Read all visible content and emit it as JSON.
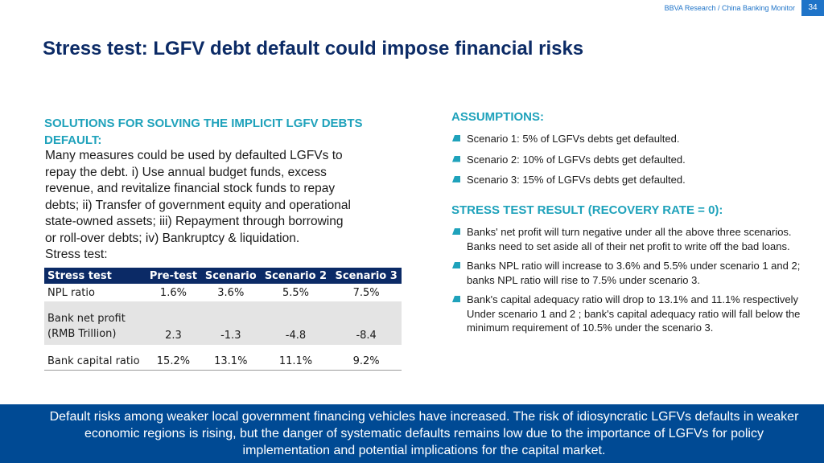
{
  "header": {
    "source": "BBVA Research / China Banking Monitor",
    "page_number": "34"
  },
  "title": "Stress test: LGFV debt default could impose financial risks",
  "left": {
    "heading": "SOLUTIONS FOR SOLVING THE IMPLICIT LGFV DEBTS DEFAULT:",
    "body_lines": [
      "Many measures could be used by defaulted LGFVs to",
      "repay the debt. i) Use annual budget funds, excess",
      "revenue, and revitalize financial stock funds to repay",
      "debts; ii) Transfer of government equity and operational",
      "state-owned assets; iii) Repayment through borrowing",
      "or roll-over debts; iv) Bankruptcy & liquidation.",
      "Stress test:"
    ]
  },
  "table": {
    "headers": [
      "Stress test",
      "Pre-test",
      "Scenario",
      "Scenario 2",
      "Scenario 3"
    ],
    "rows": [
      {
        "label_lines": [
          "NPL ratio"
        ],
        "values": [
          "1.6%",
          "3.6%",
          "5.5%",
          "7.5%"
        ]
      },
      {
        "label_lines": [
          "Bank net profit",
          "(RMB Trillion)"
        ],
        "values": [
          "2.3",
          "-1.3",
          "-4.8",
          "-8.4"
        ]
      },
      {
        "label_lines": [
          "Bank capital ratio"
        ],
        "values": [
          "15.2%",
          "13.1%",
          "11.1%",
          "9.2%"
        ]
      }
    ]
  },
  "assumptions": {
    "heading": "ASSUMPTIONS:",
    "items": [
      "Scenario 1: 5% of LGFVs debts get defaulted.",
      "Scenario 2: 10% of LGFVs debts get defaulted.",
      "Scenario 3: 15% of LGFVs debts get defaulted."
    ]
  },
  "results": {
    "heading": "STRESS TEST RESULT  (RECOVERY RATE = 0):",
    "items": [
      "Banks' net profit will turn negative under all the above three scenarios. Banks need to set aside all of their net profit to write off the bad loans.",
      "Banks NPL ratio will increase to 3.6% and 5.5% under scenario 1 and 2; banks NPL ratio will rise to 7.5% under scenario 3.",
      "Bank's capital adequacy ratio will drop to 13.1% and 11.1% respectively Under scenario 1 and 2 ; bank's capital adequacy ratio will fall below the minimum requirement of 10.5% under the scenario 3."
    ]
  },
  "footer": {
    "text": "Default risks among weaker local government financing vehicles have increased. The risk of idiosyncratic LGFVs defaults in weaker economic regions is rising, but the danger of systematic defaults remains low due to the importance of LGFVs for policy implementation and potential implications for the capital market."
  },
  "colors": {
    "title": "#0c2b66",
    "accent": "#1fa2bb",
    "table_header": "#0b2a66",
    "footer_band": "#004a94",
    "page_tab": "#1f74c8"
  },
  "icons": {
    "bullet": "parallelogram-bullet-icon"
  }
}
